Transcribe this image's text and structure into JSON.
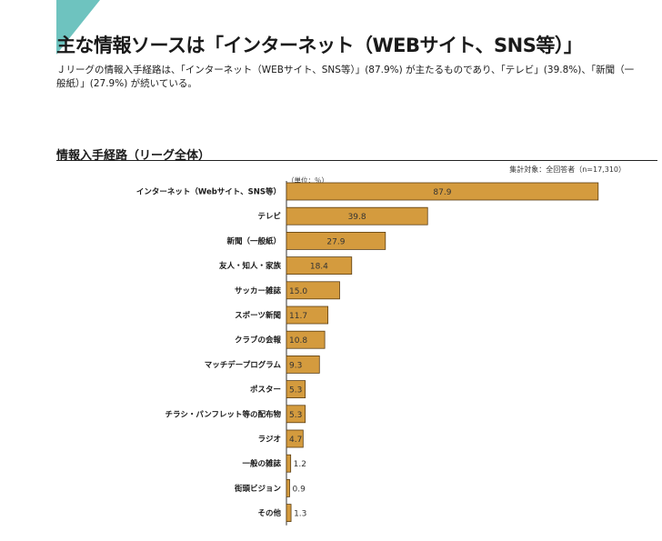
{
  "headline": "主な情報ソースは「インターネット（WEBサイト、SNS等）」",
  "description": "Ｊリーグの情報入手経路は、「インターネット（WEBサイト、SNS等）」(87.9%) が主たるものであり、「テレビ」(39.8%)、「新聞（一般紙）」(27.9%) が続いている。",
  "chart_data": {
    "type": "bar",
    "orientation": "horizontal",
    "title": "情報入手経路（リーグ全体）",
    "note": "集計対象：全回答者（n=17,310）",
    "unit": "（単位：％）",
    "categories": [
      "インターネット（Webサイト、SNS等）",
      "テレビ",
      "新聞（一般紙）",
      "友人・知人・家族",
      "サッカー雑誌",
      "スポーツ新聞",
      "クラブの会報",
      "マッチデープログラム",
      "ポスター",
      "チラシ・パンフレット等の配布物",
      "ラジオ",
      "一般の雑誌",
      "街頭ビジョン",
      "その他"
    ],
    "values": [
      87.9,
      39.8,
      27.9,
      18.4,
      15.0,
      11.7,
      10.8,
      9.3,
      5.3,
      5.3,
      4.7,
      1.2,
      0.9,
      1.3
    ],
    "value_labels": [
      "87.9",
      "39.8",
      "27.9",
      "18.4",
      "15.0",
      "11.7",
      "10.8",
      "9.3",
      "5.3",
      "5.3",
      "4.7",
      "1.2",
      "0.9",
      "1.3"
    ],
    "xlim": [
      0,
      100
    ],
    "bar_color": "#d49b3e",
    "bar_edge_color": "#5a3d12"
  },
  "colors": {
    "accent_triangle": "#6ec3bf"
  }
}
